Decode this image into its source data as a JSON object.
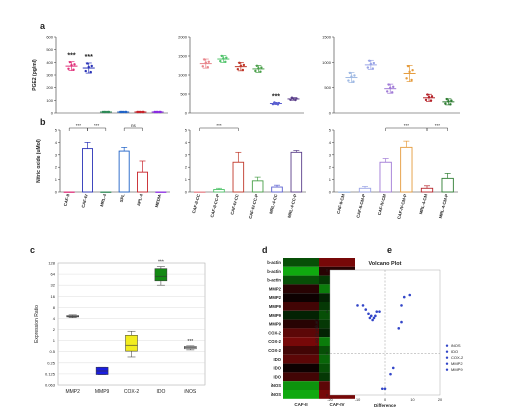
{
  "panel_labels": [
    "a",
    "b",
    "c",
    "d",
    "e"
  ],
  "colors": {
    "CAF-II": "#e0317a",
    "CAF-IV": "#2b34b8",
    "MRL-4": "#2e8b57",
    "SPL": "#1f62c7",
    "APL-4": "#c8232a",
    "MEDIA": "#8a2be2",
    "CAF-II-CC": "#e8848a",
    "CAF-II-CC-P": "#4fc36a",
    "CAF-IV-CC": "#c0392b",
    "CAF-IV-CC-P": "#4aa04a",
    "MRL-4-CC": "#5a5fd0",
    "MRL-4-CC-P": "#5b3f8a",
    "CAF-II-CM": "#9fb9e3",
    "CAF-II-CM-P": "#9aa4e6",
    "CAF-IV-CM": "#a07ad6",
    "CAF-IV-CM-P": "#e59b3c",
    "MRL-4-CM": "#b5232a",
    "MRL-4-CM-P": "#2e7d32",
    "MMP2": "#d8d8d8",
    "MMP9": "#1b1ee0",
    "COX-2": "#f2ec1f",
    "IDO": "#138a13",
    "iNOS": "#d8d8d8",
    "heat_low": "#11c011",
    "heat_mid": "#000000",
    "heat_high": "#e01010",
    "volcano_point": "#3346c8"
  },
  "chart_data": [
    {
      "panel": "a",
      "type": "scatter",
      "ylabel": "PGE2 (pg/ml)",
      "ylim": [
        0,
        600
      ],
      "yticks": [
        0,
        100,
        200,
        300,
        400,
        500,
        600
      ],
      "categories": [
        "CAF-II",
        "CAF-IV",
        "MRL-4",
        "SPL",
        "APL-4",
        "MEDIA"
      ],
      "means": [
        370,
        355,
        0,
        0,
        0,
        0
      ],
      "errors": [
        35,
        40,
        0,
        0,
        0,
        0
      ],
      "significance": [
        "***",
        "***",
        "",
        "",
        "",
        ""
      ]
    },
    {
      "panel": "a",
      "type": "scatter",
      "ylim": [
        0,
        2000
      ],
      "yticks": [
        0,
        500,
        1000,
        1500,
        2000
      ],
      "categories": [
        "CAF-II-CC",
        "CAF-II-CC-P",
        "CAF-IV-CC",
        "CAF-IV-CC-P",
        "MRL-4-CC",
        "MRL-4-CC-P"
      ],
      "means": [
        1300,
        1420,
        1220,
        1160,
        250,
        370
      ],
      "errors": [
        120,
        90,
        110,
        90,
        30,
        35
      ],
      "significance": [
        "",
        "",
        "",
        "",
        "***",
        ""
      ]
    },
    {
      "panel": "a",
      "type": "scatter",
      "ylim": [
        0,
        1500
      ],
      "yticks": [
        0,
        500,
        1000,
        1500
      ],
      "categories": [
        "CAF-II-CM",
        "CAF-II-CM-P",
        "CAF-IV-CM",
        "CAF-IV-CM-P",
        "MRL-4-CM",
        "MRL-4-CM-P"
      ],
      "means": [
        700,
        950,
        480,
        780,
        300,
        220
      ],
      "errors": [
        100,
        90,
        90,
        160,
        70,
        60
      ],
      "significance": [
        "",
        "",
        "",
        "",
        "",
        ""
      ]
    },
    {
      "panel": "b",
      "type": "bar",
      "ylabel": "Nitric oxide (uMol)",
      "ylim": [
        0,
        5
      ],
      "yticks": [
        0,
        1,
        2,
        3,
        4,
        5
      ],
      "categories": [
        "CAF-II",
        "CAF-IV",
        "MRL-4",
        "SPL",
        "APL-4",
        "MEDIA"
      ],
      "values": [
        0,
        3.5,
        0,
        3.3,
        1.6,
        0
      ],
      "errors": [
        0,
        0.5,
        0,
        0.3,
        0.9,
        0
      ],
      "brackets": [
        {
          "from": 0,
          "to": 1,
          "label": "***"
        },
        {
          "from": 1,
          "to": 2,
          "label": "***"
        },
        {
          "from": 3,
          "to": 4,
          "label": "ns"
        }
      ]
    },
    {
      "panel": "b",
      "type": "bar",
      "ylim": [
        0,
        5
      ],
      "yticks": [
        0,
        1,
        2,
        3,
        4,
        5
      ],
      "categories": [
        "CAF-II-CC",
        "CAF-II-CC-P",
        "CAF-IV-CC",
        "CAF-IV-CC-P",
        "MRL-4-CC",
        "MRL-4-CC-P"
      ],
      "values": [
        0,
        0.2,
        2.4,
        0.9,
        0.4,
        3.2
      ],
      "errors": [
        0,
        0.1,
        0.8,
        0.3,
        0.15,
        0.15
      ],
      "brackets": [
        {
          "from": 0,
          "to": 2,
          "label": "***"
        }
      ]
    },
    {
      "panel": "b",
      "type": "bar",
      "ylim": [
        0,
        5
      ],
      "yticks": [
        0,
        1,
        2,
        3,
        4,
        5
      ],
      "categories": [
        "CAF-II-CM",
        "CAF-II-CM-P",
        "CAF-IV-CM",
        "CAF-IV-CM-P",
        "MRL-4-CM",
        "MRL-4-CM-P"
      ],
      "values": [
        0,
        0.3,
        2.4,
        3.6,
        0.3,
        1.1
      ],
      "errors": [
        0,
        0.15,
        0.3,
        0.5,
        0.2,
        0.4
      ],
      "brackets": [
        {
          "from": 2,
          "to": 4,
          "label": "***"
        },
        {
          "from": 4,
          "to": 5,
          "label": "***"
        }
      ]
    },
    {
      "panel": "c",
      "type": "box",
      "ylabel": "Expression Ratio",
      "scale": "log2",
      "ylim": [
        0.0625,
        128
      ],
      "yticks": [
        "0.063",
        "0.125",
        "0.25",
        "0.5",
        "1",
        "2",
        "4",
        "8",
        "16",
        "32",
        "64",
        "128"
      ],
      "categories": [
        "MMP2",
        "MMP9",
        "COX-2",
        "IDO",
        "iNOS"
      ],
      "boxes": [
        {
          "name": "MMP2",
          "low": 4.2,
          "q1": 4.4,
          "median": 4.6,
          "q3": 4.8,
          "high": 5.0,
          "sig": ""
        },
        {
          "name": "MMP9",
          "low": 0.12,
          "q1": 0.12,
          "median": 0.15,
          "q3": 0.19,
          "high": 0.19,
          "sig": ""
        },
        {
          "name": "COX-2",
          "low": 0.36,
          "q1": 0.52,
          "median": 0.75,
          "q3": 1.4,
          "high": 1.8,
          "sig": ""
        },
        {
          "name": "IDO",
          "low": 32,
          "q1": 42,
          "median": 56,
          "q3": 90,
          "high": 102,
          "sig": "***"
        },
        {
          "name": "iNOS",
          "low": 0.56,
          "q1": 0.6,
          "median": 0.65,
          "q3": 0.7,
          "high": 0.72,
          "sig": "***"
        }
      ]
    },
    {
      "panel": "d",
      "type": "heatmap",
      "rows": [
        "b-actin",
        "b-actin",
        "b-actin",
        "MMP2",
        "MMP2",
        "MMP9",
        "MMP9",
        "MMP9",
        "COX-2",
        "COX-2",
        "COX-2",
        "IDO",
        "IDO",
        "IDO",
        "iNOS",
        "iNOS"
      ],
      "columns": [
        "CAF-II",
        "CAF-IV"
      ],
      "values": [
        [
          20,
          28
        ],
        [
          16,
          25
        ],
        [
          20,
          21
        ],
        [
          25,
          18
        ],
        [
          24,
          22
        ],
        [
          26,
          21
        ],
        [
          22,
          20
        ],
        [
          25,
          21
        ],
        [
          27,
          22
        ],
        [
          28,
          18
        ],
        [
          26,
          20
        ],
        [
          27,
          19
        ],
        [
          24,
          20
        ],
        [
          26,
          21
        ],
        [
          17,
          27
        ],
        [
          16,
          28
        ]
      ],
      "scale_ticks": [
        15,
        20,
        25,
        30
      ],
      "scale_range": [
        15,
        32
      ]
    },
    {
      "panel": "e",
      "type": "scatter",
      "title": "Volcano Plot",
      "xlabel": "Difference",
      "ylabel": "Log (p-value)",
      "xlim": [
        -20,
        20
      ],
      "ylim": [
        0,
        6
      ],
      "xticks": [
        -20,
        -10,
        0,
        10,
        20
      ],
      "yticks": [
        0,
        2,
        4,
        6
      ],
      "threshold_y": 2,
      "threshold_x": 0,
      "points": [
        [
          -10,
          4.3
        ],
        [
          -8,
          4.3
        ],
        [
          -7,
          4.1
        ],
        [
          -6,
          3.9
        ],
        [
          -5.5,
          3.7
        ],
        [
          -5,
          3.8
        ],
        [
          -4.5,
          3.6
        ],
        [
          -4,
          3.7
        ],
        [
          -3.5,
          3.8
        ],
        [
          -3,
          4.0
        ],
        [
          -2,
          4.0
        ],
        [
          2,
          1.0
        ],
        [
          3,
          1.3
        ],
        [
          -1,
          0.3
        ],
        [
          0,
          0.3
        ],
        [
          5,
          3.2
        ],
        [
          6,
          3.5
        ],
        [
          6,
          4.3
        ],
        [
          7,
          4.7
        ],
        [
          9,
          4.8
        ]
      ],
      "legend": [
        "iNOS",
        "IDO",
        "COX-2",
        "MMP2",
        "MMP9"
      ]
    }
  ]
}
